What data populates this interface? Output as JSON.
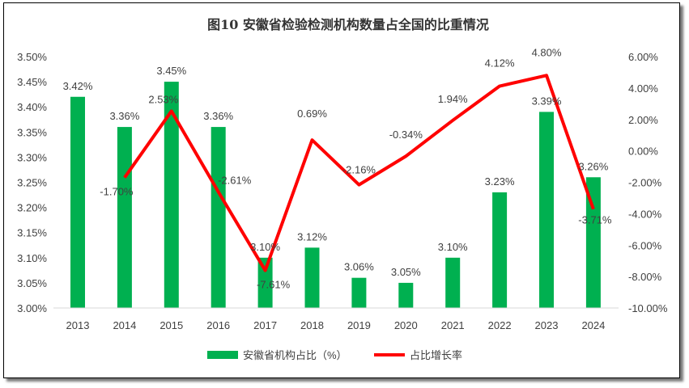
{
  "chart_data": {
    "type": "bar+line",
    "title": "图10  安徽省检验检测机构数量占全国的比重情况",
    "categories": [
      "2013",
      "2014",
      "2015",
      "2016",
      "2017",
      "2018",
      "2019",
      "2020",
      "2021",
      "2022",
      "2023",
      "2024"
    ],
    "series": [
      {
        "name": "安徽省机构占比（%）",
        "type": "bar",
        "axis": "left",
        "color": "#00b050",
        "values": [
          3.42,
          3.36,
          3.45,
          3.36,
          3.1,
          3.12,
          3.06,
          3.05,
          3.1,
          3.23,
          3.39,
          3.26
        ],
        "labels": [
          "3.42%",
          "3.36%",
          "3.45%",
          "3.36%",
          "3.10%",
          "3.12%",
          "3.06%",
          "3.05%",
          "3.10%",
          "3.23%",
          "3.39%",
          "3.26%"
        ]
      },
      {
        "name": "占比增长率",
        "type": "line",
        "axis": "right",
        "color": "#ff0000",
        "values": [
          null,
          -1.7,
          2.53,
          -2.61,
          -7.61,
          0.69,
          -2.16,
          -0.34,
          1.94,
          4.12,
          4.8,
          -3.71
        ],
        "labels": [
          "",
          "-1.70%",
          "2.53%",
          "-2.61%",
          "-7.61%",
          "0.69%",
          "-2.16%",
          "-0.34%",
          "1.94%",
          "4.12%",
          "4.80%",
          "-3.71%"
        ]
      }
    ],
    "left_axis": {
      "ylim": [
        3.0,
        3.5
      ],
      "ticks": [
        "3.00%",
        "3.05%",
        "3.10%",
        "3.15%",
        "3.20%",
        "3.25%",
        "3.30%",
        "3.35%",
        "3.40%",
        "3.45%",
        "3.50%"
      ]
    },
    "right_axis": {
      "ylim": [
        -10,
        6
      ],
      "ticks": [
        "-10.00%",
        "-8.00%",
        "-6.00%",
        "-4.00%",
        "-2.00%",
        "0.00%",
        "2.00%",
        "4.00%",
        "6.00%"
      ]
    },
    "grid": false,
    "legend": "bottom"
  }
}
